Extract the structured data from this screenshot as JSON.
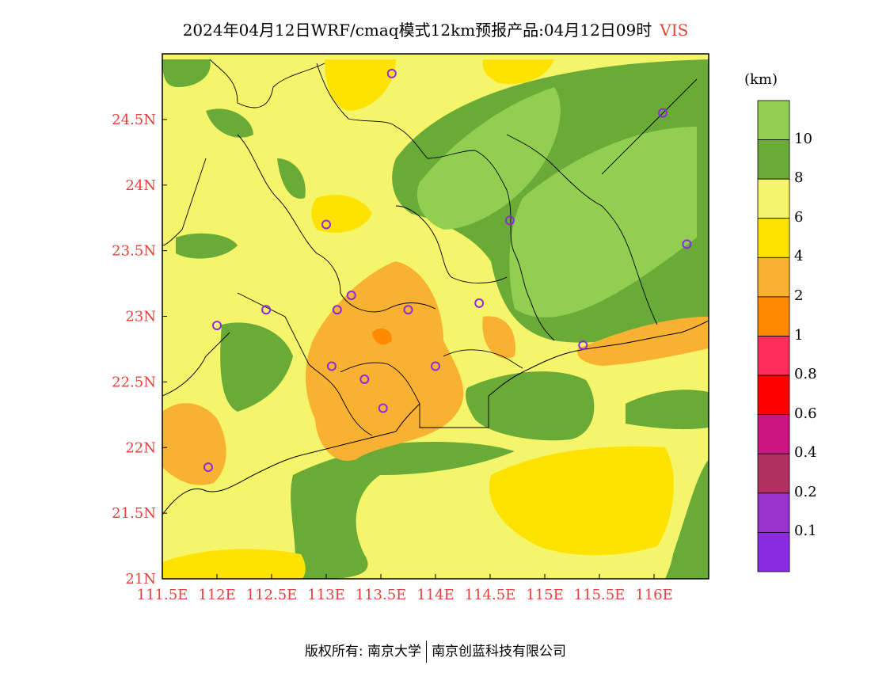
{
  "title": {
    "main": "2024年04月12日WRF/cmaq模式12km预报产品:04月12日09时",
    "variable": "VIS"
  },
  "map": {
    "lon_range": [
      111.5,
      116.5
    ],
    "lat_range": [
      21.0,
      25.0
    ],
    "lon_ticks": [
      {
        "v": 111.5,
        "label": "111.5E"
      },
      {
        "v": 112.0,
        "label": "112E"
      },
      {
        "v": 112.5,
        "label": "112.5E"
      },
      {
        "v": 113.0,
        "label": "113E"
      },
      {
        "v": 113.5,
        "label": "113.5E"
      },
      {
        "v": 114.0,
        "label": "114E"
      },
      {
        "v": 114.5,
        "label": "114.5E"
      },
      {
        "v": 115.0,
        "label": "115E"
      },
      {
        "v": 115.5,
        "label": "115.5E"
      },
      {
        "v": 116.0,
        "label": "116E"
      }
    ],
    "lat_ticks": [
      {
        "v": 21.0,
        "label": "21N"
      },
      {
        "v": 21.5,
        "label": "21.5N"
      },
      {
        "v": 22.0,
        "label": "22N"
      },
      {
        "v": 22.5,
        "label": "22.5N"
      },
      {
        "v": 23.0,
        "label": "23N"
      },
      {
        "v": 23.5,
        "label": "23.5N"
      },
      {
        "v": 24.0,
        "label": "24N"
      },
      {
        "v": 24.5,
        "label": "24.5N"
      }
    ],
    "stations": [
      {
        "lon": 113.6,
        "lat": 24.85
      },
      {
        "lon": 116.08,
        "lat": 24.55
      },
      {
        "lon": 113.0,
        "lat": 23.7
      },
      {
        "lon": 114.68,
        "lat": 23.73
      },
      {
        "lon": 116.3,
        "lat": 23.55
      },
      {
        "lon": 113.23,
        "lat": 23.16
      },
      {
        "lon": 112.45,
        "lat": 23.05
      },
      {
        "lon": 113.1,
        "lat": 23.05
      },
      {
        "lon": 113.75,
        "lat": 23.05
      },
      {
        "lon": 114.4,
        "lat": 23.1
      },
      {
        "lon": 112.0,
        "lat": 22.93
      },
      {
        "lon": 115.35,
        "lat": 22.78
      },
      {
        "lon": 113.05,
        "lat": 22.62
      },
      {
        "lon": 113.35,
        "lat": 22.52
      },
      {
        "lon": 114.0,
        "lat": 22.62
      },
      {
        "lon": 113.52,
        "lat": 22.3
      },
      {
        "lon": 111.92,
        "lat": 21.85
      }
    ],
    "colors": {
      "c10": "#92cf50",
      "c8": "#6aaa37",
      "c6": "#f4f56b",
      "c4": "#ffe300",
      "c2": "#f9b131",
      "c1": "#ff8a00",
      "station": "#8a2be2"
    }
  },
  "colorbar": {
    "unit": "(km)",
    "bins": [
      {
        "color": "#92cf50"
      },
      {
        "color": "#6aaa37"
      },
      {
        "color": "#f4f56b"
      },
      {
        "color": "#ffe300"
      },
      {
        "color": "#f9b131"
      },
      {
        "color": "#ff8a00"
      },
      {
        "color": "#fb2f5a"
      },
      {
        "color": "#ff0000"
      },
      {
        "color": "#cc1580"
      },
      {
        "color": "#b03060"
      },
      {
        "color": "#9932cc"
      },
      {
        "color": "#8a2be2"
      }
    ],
    "labels": [
      "10",
      "8",
      "6",
      "4",
      "2",
      "1",
      "0.8",
      "0.6",
      "0.4",
      "0.2",
      "0.1"
    ]
  },
  "footer": {
    "left": "版权所有: 南京大学",
    "right": "南京创蓝科技有限公司"
  }
}
